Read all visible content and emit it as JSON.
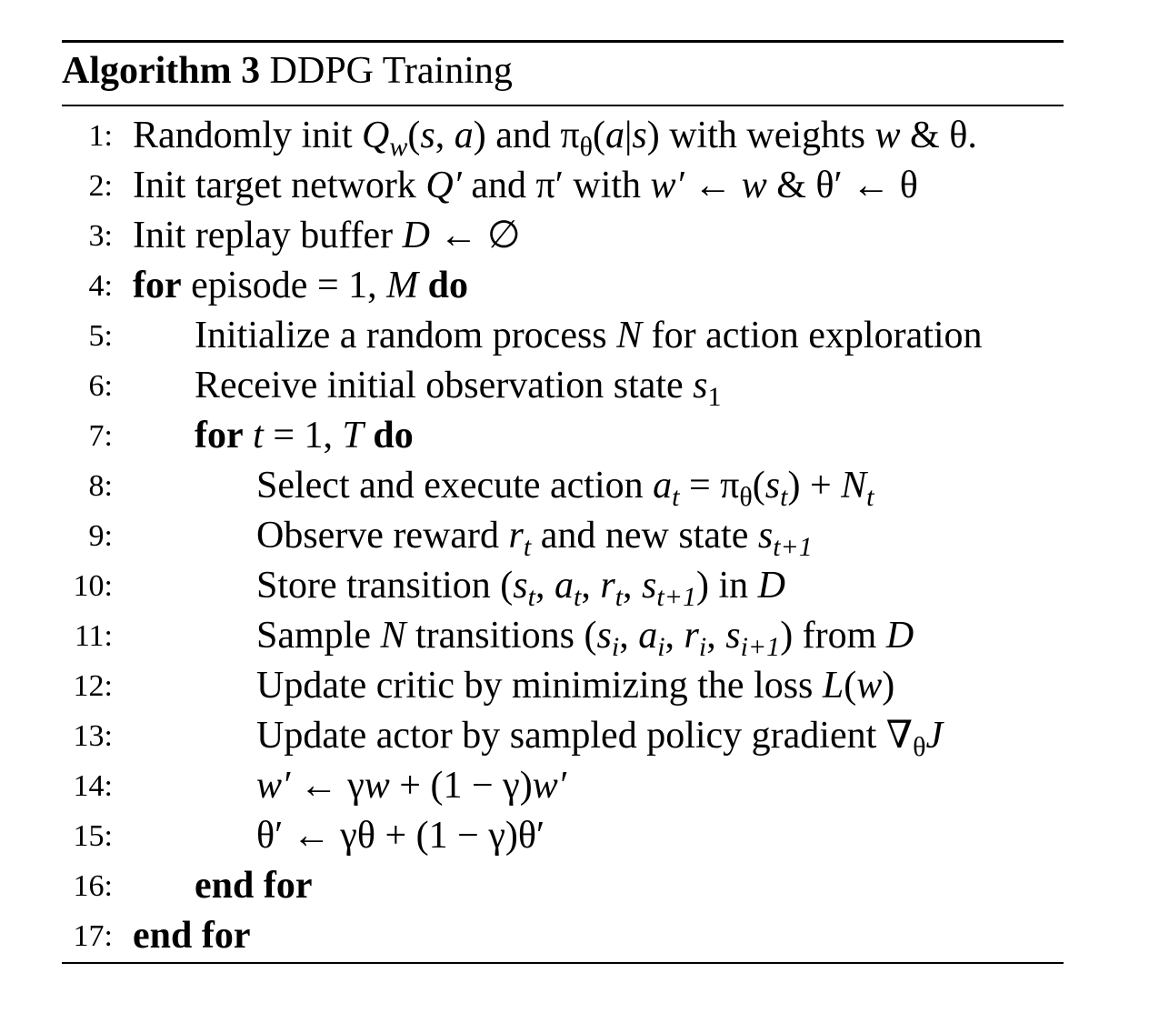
{
  "caption": {
    "label": "Algorithm 3",
    "title": "DDPG Training"
  },
  "lines": [
    {
      "num": "1:",
      "indent": 0,
      "segments": [
        {
          "t": "Randomly init "
        },
        {
          "t": "Q",
          "s": "i"
        },
        {
          "t": "w",
          "s": "subi"
        },
        {
          "t": "("
        },
        {
          "t": "s",
          "s": "i"
        },
        {
          "t": ", "
        },
        {
          "t": "a",
          "s": "i"
        },
        {
          "t": ") and π"
        },
        {
          "t": "θ",
          "s": "sub"
        },
        {
          "t": "("
        },
        {
          "t": "a",
          "s": "i"
        },
        {
          "t": "|"
        },
        {
          "t": "s",
          "s": "i"
        },
        {
          "t": ") with weights "
        },
        {
          "t": "w",
          "s": "i"
        },
        {
          "t": " & θ."
        }
      ]
    },
    {
      "num": "2:",
      "indent": 0,
      "segments": [
        {
          "t": "Init target network "
        },
        {
          "t": "Q′",
          "s": "i"
        },
        {
          "t": " and π′ with "
        },
        {
          "t": "w′",
          "s": "i"
        },
        {
          "t": " ← "
        },
        {
          "t": "w",
          "s": "i"
        },
        {
          "t": " & θ′ ← θ"
        }
      ]
    },
    {
      "num": "3:",
      "indent": 0,
      "segments": [
        {
          "t": "Init replay buffer "
        },
        {
          "t": "D",
          "s": "i"
        },
        {
          "t": " ← ∅"
        }
      ]
    },
    {
      "num": "4:",
      "indent": 0,
      "segments": [
        {
          "t": "for",
          "s": "b"
        },
        {
          "t": " episode = 1, "
        },
        {
          "t": "M",
          "s": "i"
        },
        {
          "t": " "
        },
        {
          "t": "do",
          "s": "b"
        }
      ]
    },
    {
      "num": "5:",
      "indent": 1,
      "segments": [
        {
          "t": "Initialize a random process "
        },
        {
          "t": "N",
          "s": "i"
        },
        {
          "t": " for action exploration"
        }
      ]
    },
    {
      "num": "6:",
      "indent": 1,
      "segments": [
        {
          "t": "Receive initial observation state "
        },
        {
          "t": "s",
          "s": "i"
        },
        {
          "t": "1",
          "s": "sub"
        }
      ]
    },
    {
      "num": "7:",
      "indent": 1,
      "segments": [
        {
          "t": "for",
          "s": "b"
        },
        {
          "t": " "
        },
        {
          "t": "t",
          "s": "i"
        },
        {
          "t": " = 1, "
        },
        {
          "t": "T",
          "s": "i"
        },
        {
          "t": " "
        },
        {
          "t": "do",
          "s": "b"
        }
      ]
    },
    {
      "num": "8:",
      "indent": 2,
      "segments": [
        {
          "t": "Select and execute action "
        },
        {
          "t": "a",
          "s": "i"
        },
        {
          "t": "t",
          "s": "subi"
        },
        {
          "t": " = π"
        },
        {
          "t": "θ",
          "s": "sub"
        },
        {
          "t": "("
        },
        {
          "t": "s",
          "s": "i"
        },
        {
          "t": "t",
          "s": "subi"
        },
        {
          "t": ") + "
        },
        {
          "t": "N",
          "s": "i"
        },
        {
          "t": "t",
          "s": "subi"
        }
      ]
    },
    {
      "num": "9:",
      "indent": 2,
      "segments": [
        {
          "t": "Observe reward "
        },
        {
          "t": "r",
          "s": "i"
        },
        {
          "t": "t",
          "s": "subi"
        },
        {
          "t": " and new state "
        },
        {
          "t": "s",
          "s": "i"
        },
        {
          "t": "t+1",
          "s": "subi"
        }
      ]
    },
    {
      "num": "10:",
      "indent": 2,
      "segments": [
        {
          "t": "Store transition ("
        },
        {
          "t": "s",
          "s": "i"
        },
        {
          "t": "t",
          "s": "subi"
        },
        {
          "t": ", "
        },
        {
          "t": "a",
          "s": "i"
        },
        {
          "t": "t",
          "s": "subi"
        },
        {
          "t": ", "
        },
        {
          "t": "r",
          "s": "i"
        },
        {
          "t": "t",
          "s": "subi"
        },
        {
          "t": ", "
        },
        {
          "t": "s",
          "s": "i"
        },
        {
          "t": "t+1",
          "s": "subi"
        },
        {
          "t": ") in "
        },
        {
          "t": "D",
          "s": "i"
        }
      ]
    },
    {
      "num": "11:",
      "indent": 2,
      "segments": [
        {
          "t": "Sample "
        },
        {
          "t": "N",
          "s": "i"
        },
        {
          "t": " transitions ("
        },
        {
          "t": "s",
          "s": "i"
        },
        {
          "t": "i",
          "s": "subi"
        },
        {
          "t": ", "
        },
        {
          "t": "a",
          "s": "i"
        },
        {
          "t": "i",
          "s": "subi"
        },
        {
          "t": ", "
        },
        {
          "t": "r",
          "s": "i"
        },
        {
          "t": "i",
          "s": "subi"
        },
        {
          "t": ", "
        },
        {
          "t": "s",
          "s": "i"
        },
        {
          "t": "i+1",
          "s": "subi"
        },
        {
          "t": ") from "
        },
        {
          "t": "D",
          "s": "i"
        }
      ]
    },
    {
      "num": "12:",
      "indent": 2,
      "segments": [
        {
          "t": "Update critic by minimizing the loss "
        },
        {
          "t": "L",
          "s": "i"
        },
        {
          "t": "("
        },
        {
          "t": "w",
          "s": "i"
        },
        {
          "t": ")"
        }
      ]
    },
    {
      "num": "13:",
      "indent": 2,
      "segments": [
        {
          "t": "Update actor by sampled policy gradient ∇"
        },
        {
          "t": "θ",
          "s": "sub"
        },
        {
          "t": "J",
          "s": "i"
        }
      ]
    },
    {
      "num": "14:",
      "indent": 2,
      "segments": [
        {
          "t": "w′",
          "s": "i"
        },
        {
          "t": " ← γ"
        },
        {
          "t": "w",
          "s": "i"
        },
        {
          "t": " + (1 − γ)"
        },
        {
          "t": "w′",
          "s": "i"
        }
      ]
    },
    {
      "num": "15:",
      "indent": 2,
      "segments": [
        {
          "t": "θ′ ← γθ + (1 − γ)θ′"
        }
      ]
    },
    {
      "num": "16:",
      "indent": 1,
      "segments": [
        {
          "t": "end for",
          "s": "b"
        }
      ]
    },
    {
      "num": "17:",
      "indent": 0,
      "segments": [
        {
          "t": "end for",
          "s": "b"
        }
      ]
    }
  ]
}
